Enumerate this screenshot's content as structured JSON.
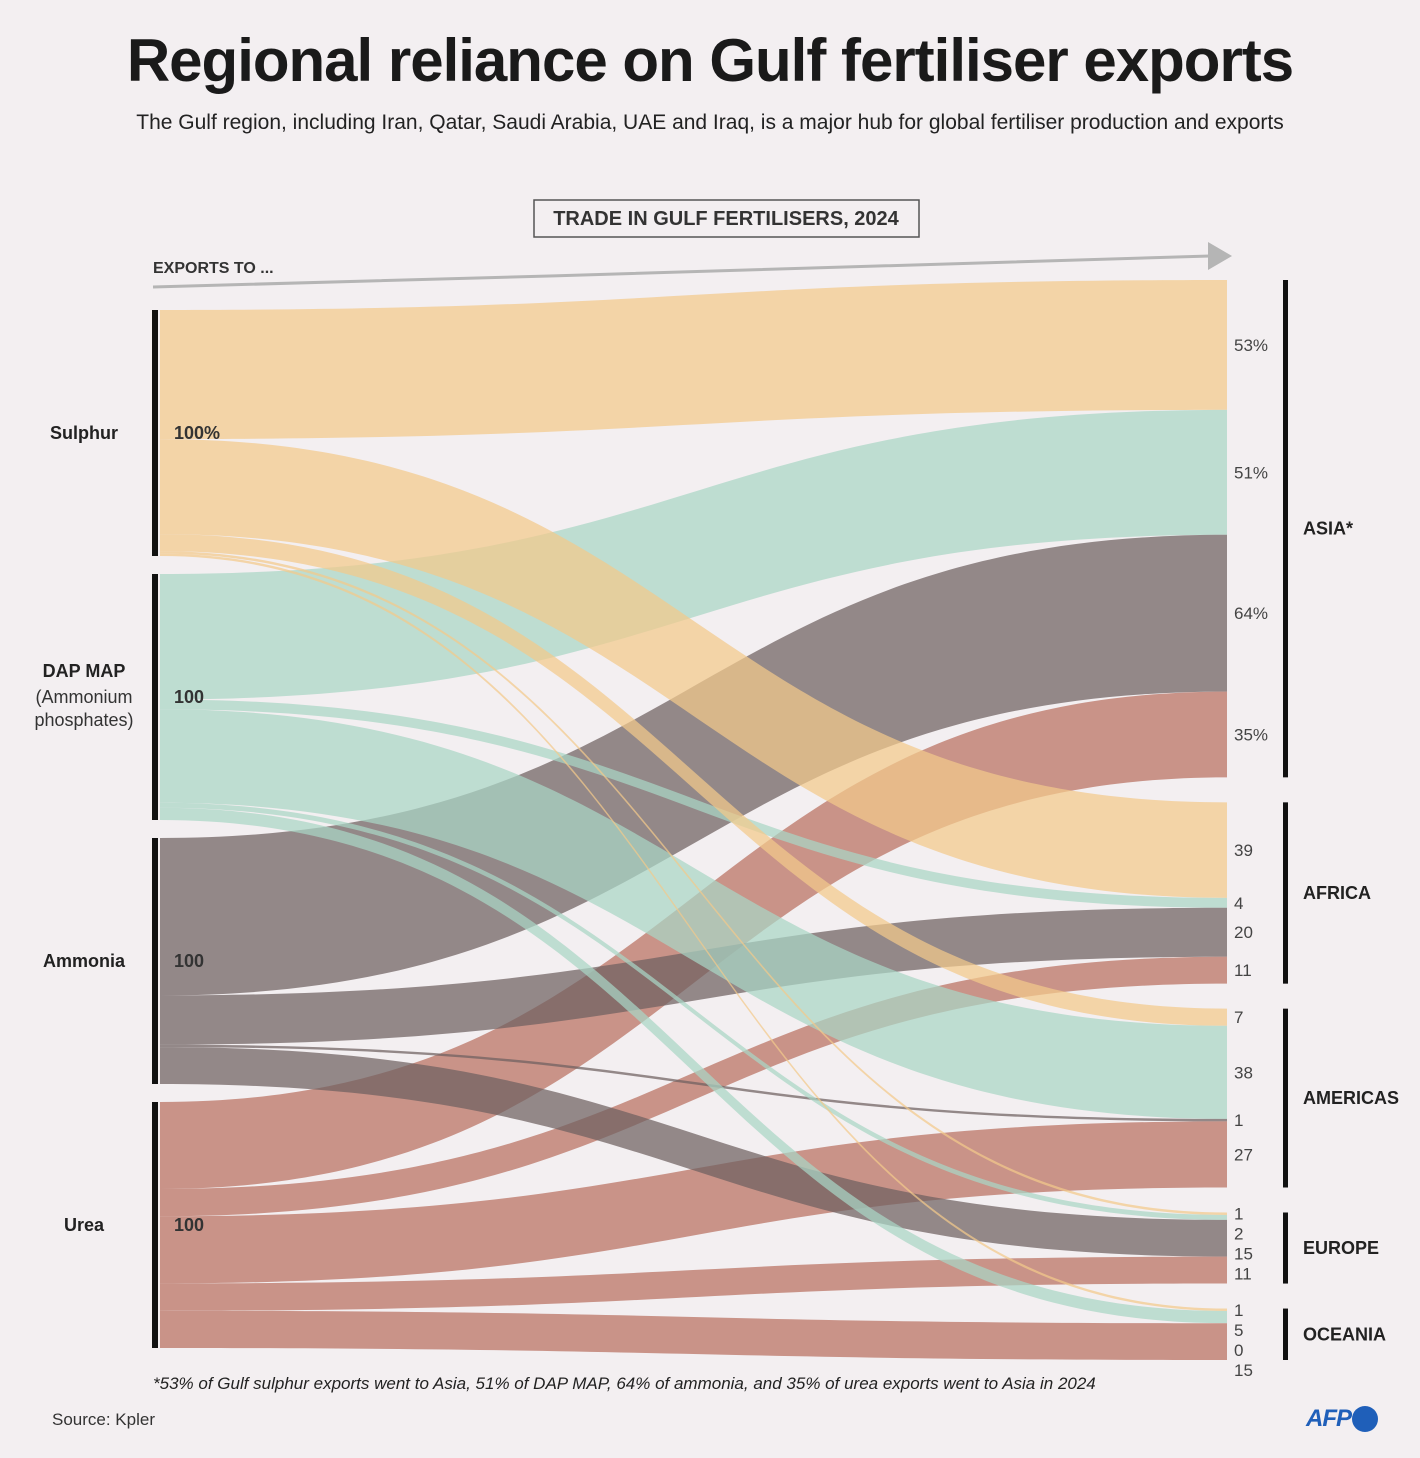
{
  "title": "Regional reliance on Gulf fertiliser exports",
  "subtitle": "The Gulf region, including Iran, Qatar, Saudi Arabia, UAE and Iraq, is a major hub for global fertiliser production and exports",
  "panel_label": "TRADE IN GULF FERTILISERS, 2024",
  "exports_to_label": "EXPORTS TO ...",
  "footnote": "*53% of Gulf sulphur exports went to Asia, 51% of DAP MAP, 64% of ammonia, and 35% of urea exports went to Asia in 2024",
  "source": "Source: Kpler",
  "logo": "AFP",
  "colors": {
    "sulphur": "#f2c98a",
    "dap_map": "#a9d6c5",
    "ammonia": "#6d5f5f",
    "urea": "#b86f60",
    "background": "#f3eff1",
    "logo": "#1f5fb9"
  },
  "chart_data": {
    "type": "sankey",
    "unit": "% of each product's Gulf exports",
    "sources": [
      {
        "id": "sulphur",
        "label": "Sulphur",
        "sublabel": "",
        "total_label": "100%",
        "color": "#f2c98a"
      },
      {
        "id": "dap_map",
        "label": "DAP MAP",
        "sublabel": "(Ammonium phosphates)",
        "total_label": "100",
        "color": "#a9d6c5"
      },
      {
        "id": "ammonia",
        "label": "Ammonia",
        "sublabel": "",
        "total_label": "100",
        "color": "#6d5f5f"
      },
      {
        "id": "urea",
        "label": "Urea",
        "sublabel": "",
        "total_label": "100",
        "color": "#b86f60"
      }
    ],
    "regions": [
      {
        "id": "asia",
        "label": "ASIA*",
        "flows": [
          {
            "source": "sulphur",
            "value": 53,
            "label": "53%"
          },
          {
            "source": "dap_map",
            "value": 51,
            "label": "51%"
          },
          {
            "source": "ammonia",
            "value": 64,
            "label": "64%"
          },
          {
            "source": "urea",
            "value": 35,
            "label": "35%"
          }
        ]
      },
      {
        "id": "africa",
        "label": "AFRICA",
        "flows": [
          {
            "source": "sulphur",
            "value": 39,
            "label": "39"
          },
          {
            "source": "dap_map",
            "value": 4,
            "label": "4"
          },
          {
            "source": "ammonia",
            "value": 20,
            "label": "20"
          },
          {
            "source": "urea",
            "value": 11,
            "label": "11"
          }
        ]
      },
      {
        "id": "americas",
        "label": "AMERICAS",
        "flows": [
          {
            "source": "sulphur",
            "value": 7,
            "label": "7"
          },
          {
            "source": "dap_map",
            "value": 38,
            "label": "38"
          },
          {
            "source": "ammonia",
            "value": 1,
            "label": "1"
          },
          {
            "source": "urea",
            "value": 27,
            "label": "27"
          }
        ]
      },
      {
        "id": "europe",
        "label": "EUROPE",
        "flows": [
          {
            "source": "sulphur",
            "value": 1,
            "label": "1"
          },
          {
            "source": "dap_map",
            "value": 2,
            "label": "2"
          },
          {
            "source": "ammonia",
            "value": 15,
            "label": "15"
          },
          {
            "source": "urea",
            "value": 11,
            "label": "11"
          }
        ]
      },
      {
        "id": "oceania",
        "label": "OCEANIA",
        "flows": [
          {
            "source": "sulphur",
            "value": 1,
            "label": "1"
          },
          {
            "source": "dap_map",
            "value": 5,
            "label": "5"
          },
          {
            "source": "ammonia",
            "value": 0,
            "label": "0"
          },
          {
            "source": "urea",
            "value": 15,
            "label": "15"
          }
        ]
      }
    ]
  }
}
